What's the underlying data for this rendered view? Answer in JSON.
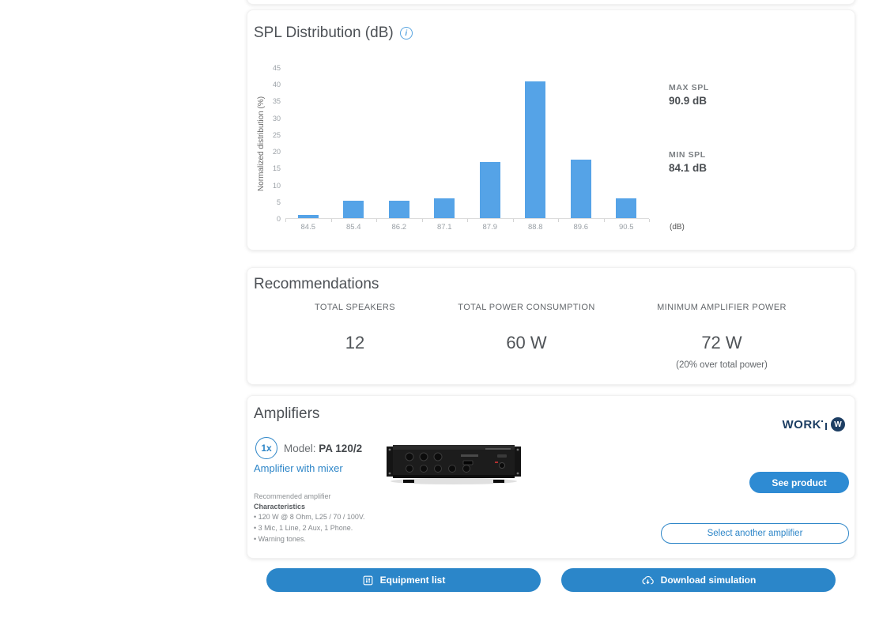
{
  "chart_card": {
    "title": "SPL Distribution (dB)",
    "stats": {
      "max_label": "MAX SPL",
      "max_value": "90.9 dB",
      "min_label": "MIN SPL",
      "min_value": "84.1 dB"
    }
  },
  "chart_data": {
    "type": "bar",
    "title": "SPL Distribution (dB)",
    "categories": [
      "84.5",
      "85.4",
      "86.2",
      "87.1",
      "87.9",
      "88.8",
      "89.6",
      "90.5"
    ],
    "values": [
      1,
      5.3,
      5.3,
      5.8,
      16.8,
      40.7,
      17.4,
      5.8
    ],
    "xlabel": "(dB)",
    "ylabel": "Normalized distribution (%)",
    "ylim": [
      0,
      45
    ],
    "yticks": [
      0,
      5,
      10,
      15,
      20,
      25,
      30,
      35,
      40,
      45
    ],
    "bar_color": "#55a3e7",
    "grid": false,
    "legend": false
  },
  "recommendations": {
    "title": "Recommendations",
    "items": [
      {
        "label": "TOTAL SPEAKERS",
        "value": "12",
        "note": ""
      },
      {
        "label": "TOTAL POWER CONSUMPTION",
        "value": "60 W",
        "note": ""
      },
      {
        "label": "MINIMUM AMPLIFIER POWER",
        "value": "72 W",
        "note": "(20% over total power)"
      }
    ]
  },
  "amplifiers": {
    "title": "Amplifiers",
    "quantity": "1x",
    "model_label": "Model:",
    "model_value": "PA 120/2",
    "type_link": "Amplifier with mixer",
    "recommended_note": "Recommended amplifier",
    "characteristics_label": "Characteristics",
    "characteristics": [
      "• 120 W @ 8 Ohm, L25 / 70 / 100V.",
      "• 3 Mic, 1 Line, 2 Aux, 1 Phone.",
      "• Warning tones."
    ],
    "brand": "WORK",
    "brand_badge_letter": "W",
    "see_product_label": "See product",
    "select_another_label": "Select another amplifier"
  },
  "footer": {
    "equipment_list_label": "Equipment list",
    "download_simulation_label": "Download simulation"
  },
  "colors": {
    "accent_blue": "#2e86c8",
    "button_blue": "#2b86c9",
    "bar_blue": "#55a3e7",
    "brand_navy": "#1d3e63"
  }
}
